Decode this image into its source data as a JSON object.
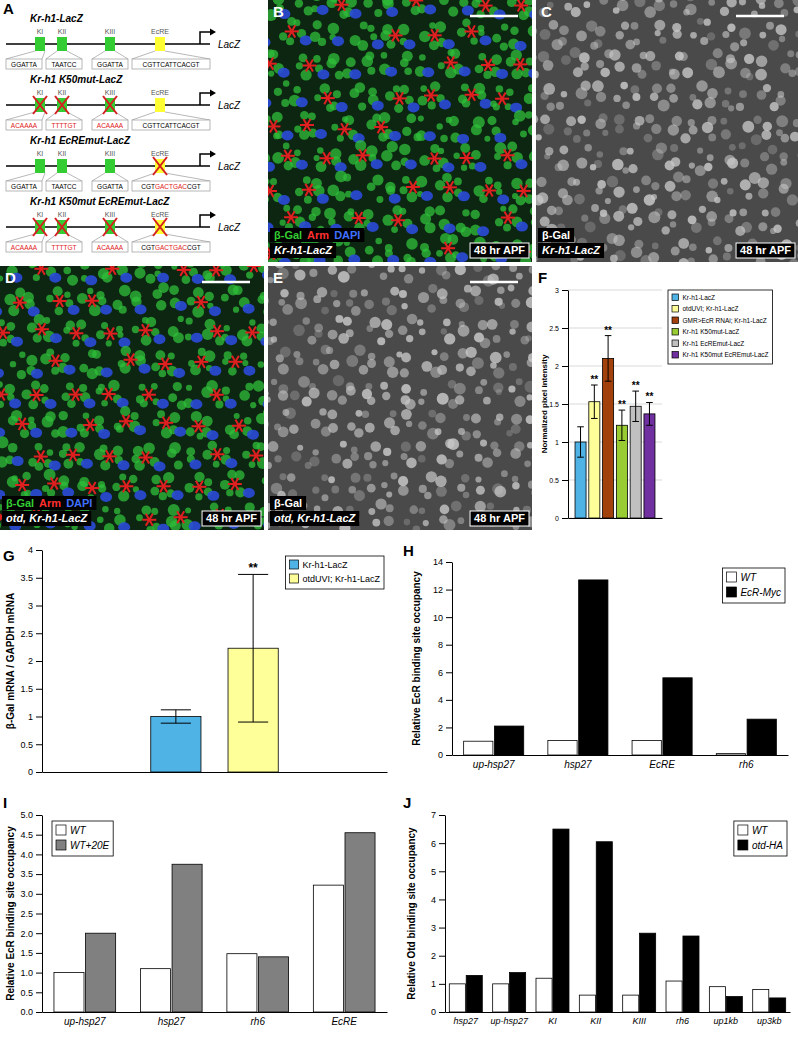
{
  "diagram": {
    "title": "A",
    "reporter": "LacZ",
    "constructs": [
      {
        "name": "Kr-h1-LacZ",
        "sites": [
          {
            "label": "KI",
            "kind": "homeodomain",
            "mutated": false,
            "sequence": [
              {
                "text": "GGATTA",
                "mutated": false
              }
            ]
          },
          {
            "label": "KII",
            "kind": "homeodomain",
            "mutated": false,
            "sequence": [
              {
                "text": "TAATCC",
                "mutated": false
              }
            ]
          },
          {
            "label": "KIII",
            "kind": "homeodomain",
            "mutated": false,
            "sequence": [
              {
                "text": "GGATTA",
                "mutated": false
              }
            ]
          },
          {
            "label": "EcRE",
            "kind": "ecdysone",
            "mutated": false,
            "sequence": [
              {
                "text": "CGTTCATTCACGT",
                "mutated": false
              }
            ]
          }
        ]
      },
      {
        "name": "Kr-h1 K50mut-LacZ",
        "sites": [
          {
            "label": "KI",
            "kind": "homeodomain",
            "mutated": true,
            "sequence": [
              {
                "text": "ACAAAA",
                "mutated": true
              }
            ]
          },
          {
            "label": "KII",
            "kind": "homeodomain",
            "mutated": true,
            "sequence": [
              {
                "text": "TTTTGT",
                "mutated": true
              }
            ]
          },
          {
            "label": "KIII",
            "kind": "homeodomain",
            "mutated": true,
            "sequence": [
              {
                "text": "ACAAAA",
                "mutated": true
              }
            ]
          },
          {
            "label": "EcRE",
            "kind": "ecdysone",
            "mutated": false,
            "sequence": [
              {
                "text": "CGTTCATTCACGT",
                "mutated": false
              }
            ]
          }
        ]
      },
      {
        "name": "Kr-h1 EcREmut-LacZ",
        "sites": [
          {
            "label": "KI",
            "kind": "homeodomain",
            "mutated": false,
            "sequence": [
              {
                "text": "GGATTA",
                "mutated": false
              }
            ]
          },
          {
            "label": "KII",
            "kind": "homeodomain",
            "mutated": false,
            "sequence": [
              {
                "text": "TAATCC",
                "mutated": false
              }
            ]
          },
          {
            "label": "KIII",
            "kind": "homeodomain",
            "mutated": false,
            "sequence": [
              {
                "text": "GGATTA",
                "mutated": false
              }
            ]
          },
          {
            "label": "EcRE",
            "kind": "ecdysone",
            "mutated": true,
            "sequence": [
              {
                "text": "CGT",
                "mutated": false
              },
              {
                "text": "GACTGAC",
                "mutated": true
              },
              {
                "text": "CGT",
                "mutated": false
              }
            ]
          }
        ]
      },
      {
        "name": "Kr-h1 K50mut EcREmut-LacZ",
        "sites": [
          {
            "label": "KI",
            "kind": "homeodomain",
            "mutated": true,
            "sequence": [
              {
                "text": "ACAAAA",
                "mutated": true
              }
            ]
          },
          {
            "label": "KII",
            "kind": "homeodomain",
            "mutated": true,
            "sequence": [
              {
                "text": "TTTTGT",
                "mutated": true
              }
            ]
          },
          {
            "label": "KIII",
            "kind": "homeodomain",
            "mutated": true,
            "sequence": [
              {
                "text": "ACAAAA",
                "mutated": true
              }
            ]
          },
          {
            "label": "EcRE",
            "kind": "ecdysone",
            "mutated": true,
            "sequence": [
              {
                "text": "CGT",
                "mutated": false
              },
              {
                "text": "GACTGAC",
                "mutated": true
              },
              {
                "text": "CGT",
                "mutated": false
              }
            ]
          }
        ]
      }
    ]
  },
  "images": [
    {
      "title": "B",
      "genotype": "Kr-h1-LacZ",
      "stains": [
        {
          "text": "β-Gal",
          "color": "#33cc33"
        },
        {
          "text": "Arm",
          "color": "#ff3030"
        },
        {
          "text": "DAPI",
          "color": "#4070ff"
        }
      ],
      "stage": "48 hr APF"
    },
    {
      "title": "C",
      "genotype": "Kr-h1-LacZ",
      "stains": [
        {
          "text": "β-Gal",
          "color": "#ffffff"
        }
      ],
      "stage": "48 hr APF"
    },
    {
      "title": "D",
      "genotype": "otd, Kr-h1-LacZ",
      "stains": [
        {
          "text": "β-Gal",
          "color": "#33cc33"
        },
        {
          "text": "Arm",
          "color": "#ff3030"
        },
        {
          "text": "DAPI",
          "color": "#4070ff"
        }
      ],
      "stage": "48 hr APF"
    },
    {
      "title": "E",
      "genotype": "otd, Kr-h1-LacZ",
      "stains": [
        {
          "text": "β-Gal",
          "color": "#ffffff"
        }
      ],
      "stage": "48 hr APF"
    }
  ],
  "chart_data": [
    {
      "type": "bar",
      "title": "F",
      "y_label": "Normalized pixel intensity",
      "categories": [
        null
      ],
      "series": [
        {
          "name": "Kr-h1-LacZ",
          "color": "#4fb3e6",
          "values": [
            1.0
          ],
          "errors": [
            0.2
          ]
        },
        {
          "name": "otdUVI; Kr-h1-LacZ",
          "color": "#ffff99",
          "values": [
            1.53
          ],
          "errors": [
            0.22
          ],
          "annotations": [
            "**"
          ]
        },
        {
          "name": "GMR>EcR RNAi; Kr-h1-LacZ",
          "color": "#a3410d",
          "values": [
            2.1
          ],
          "errors": [
            0.3
          ],
          "annotations": [
            "**"
          ]
        },
        {
          "name": "Kr-h1 K50mut-LacZ",
          "color": "#99cc33",
          "values": [
            1.22
          ],
          "errors": [
            0.2
          ],
          "annotations": [
            "**"
          ]
        },
        {
          "name": "Kr-h1 EcREmut-LacZ",
          "color": "#c0c0c0",
          "values": [
            1.47
          ],
          "errors": [
            0.2
          ],
          "annotations": [
            "**"
          ]
        },
        {
          "name": "Kr-h1 K50mut EcREmut-LacZ",
          "color": "#7030a0",
          "values": [
            1.37
          ],
          "errors": [
            0.15
          ],
          "annotations": [
            "**"
          ]
        }
      ],
      "ylim": [
        0,
        3
      ],
      "yticks": [
        0,
        0.5,
        1,
        1.5,
        2,
        2.5,
        3
      ],
      "grid": true,
      "legend": "right",
      "tick_labels": "y"
    },
    {
      "type": "bar",
      "title": "G",
      "y_label": "β-Gal mRNA / GAPDH mRNA",
      "categories": [
        null
      ],
      "series": [
        {
          "name": "Kr-h1-LacZ",
          "color": "#4fb3e6",
          "values": [
            1.0
          ],
          "errors": [
            0.12
          ]
        },
        {
          "name": "otdUVI; Kr-h1-LacZ",
          "color": "#ffff99",
          "values": [
            2.23
          ],
          "errors": [
            1.33
          ],
          "annotations": [
            "**"
          ]
        }
      ],
      "ylim": [
        0,
        4
      ],
      "yticks": [
        0,
        0.5,
        1,
        1.5,
        2,
        2.5,
        3,
        3.5,
        4
      ],
      "grid": false,
      "legend": "upper right",
      "tick_labels": "y"
    },
    {
      "type": "bar",
      "title": "H",
      "y_label": "Relative EcR binding site occupancy",
      "categories": [
        "up-hsp27",
        "hsp27",
        "EcRE",
        "rh6"
      ],
      "series": [
        {
          "name": "WT",
          "color": "#ffffff",
          "values": [
            1.0,
            1.05,
            1.05,
            0.1
          ]
        },
        {
          "name": "EcR-Myc",
          "color": "#000000",
          "values": [
            2.1,
            12.7,
            5.6,
            2.6
          ]
        }
      ],
      "ylim": [
        0,
        14
      ],
      "yticks": [
        0,
        2,
        4,
        6,
        8,
        10,
        12,
        14
      ],
      "grid": false,
      "legend": "upper right"
    },
    {
      "type": "bar",
      "title": "I",
      "y_label": "Relative EcR binding site occupancy",
      "categories": [
        "up-hsp27",
        "hsp27",
        "rh6",
        "EcRE"
      ],
      "series": [
        {
          "name": "WT",
          "color": "#ffffff",
          "values": [
            1.0,
            1.1,
            1.48,
            3.22
          ]
        },
        {
          "name": "WT+20E",
          "color": "#808080",
          "values": [
            2.0,
            3.75,
            1.4,
            4.55
          ]
        }
      ],
      "ylim": [
        0,
        5
      ],
      "yticks": [
        {
          "value": 0,
          "label": "0.0"
        },
        {
          "value": 0.5,
          "label": "0.5"
        },
        {
          "value": 1,
          "label": "1.0"
        },
        {
          "value": 1.5,
          "label": "1.5"
        },
        {
          "value": 2,
          "label": "2.0"
        },
        {
          "value": 2.5,
          "label": "2.5"
        },
        {
          "value": 3,
          "label": "3.0"
        },
        {
          "value": 3.5,
          "label": "3.5"
        },
        {
          "value": 4,
          "label": "4.0"
        },
        {
          "value": 4.5,
          "label": "4.5"
        },
        {
          "value": 5,
          "label": "5.0"
        }
      ],
      "grid": false,
      "legend": "upper left"
    },
    {
      "type": "bar",
      "title": "J",
      "y_label": "Relative Otd binding site occupancy",
      "categories": [
        "hsp27",
        "up-hsp27",
        "KI",
        "KII",
        "KIII",
        "rh6",
        "up1kb",
        "up3kb"
      ],
      "series": [
        {
          "name": "WT",
          "color": "#ffffff",
          "values": [
            1.0,
            1.0,
            1.2,
            0.6,
            0.6,
            1.1,
            0.9,
            0.8
          ]
        },
        {
          "name": "otd-HA",
          "color": "#000000",
          "values": [
            1.3,
            1.4,
            6.5,
            6.05,
            2.8,
            2.7,
            0.55,
            0.5
          ]
        }
      ],
      "ylim": [
        0,
        7
      ],
      "yticks": [
        0,
        1,
        2,
        3,
        4,
        5,
        6,
        7
      ],
      "grid": false,
      "legend": "upper right"
    }
  ]
}
